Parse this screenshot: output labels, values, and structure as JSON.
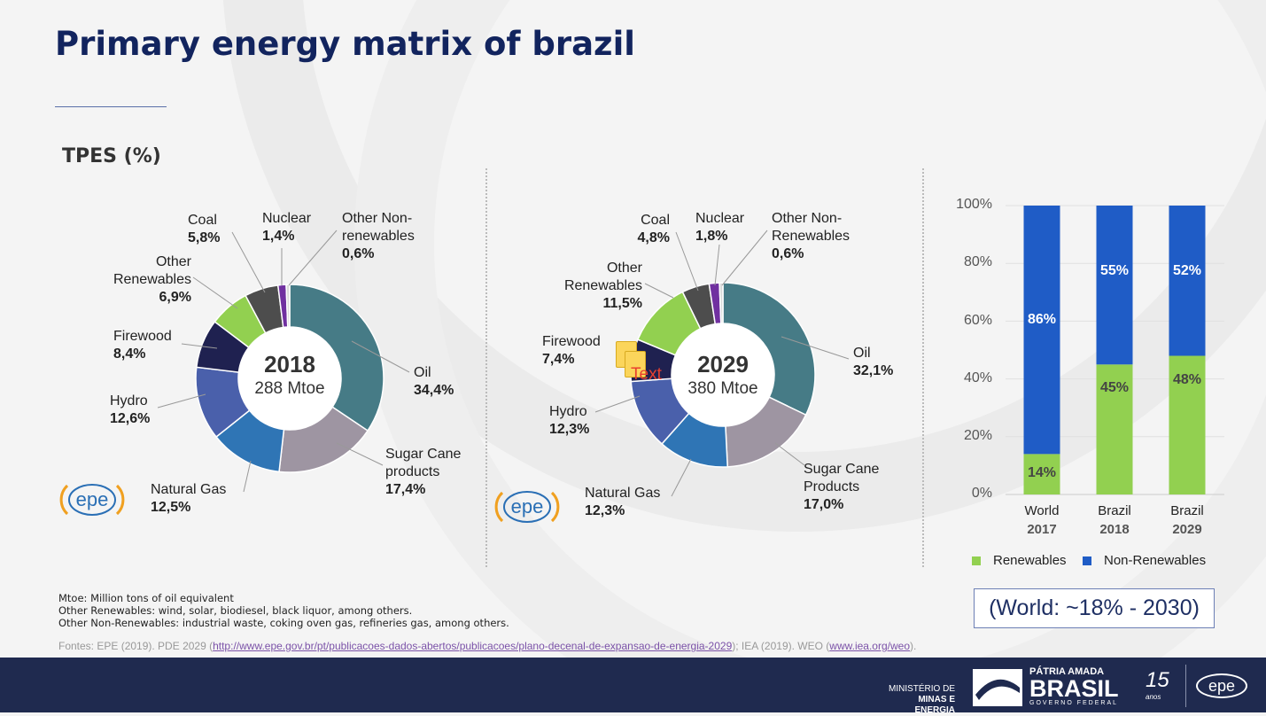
{
  "title": "Primary energy matrix of brazil",
  "subtitle": "TPES (%)",
  "colors": {
    "oil": "#467b86",
    "sugar_cane": "#9e95a2",
    "natural_gas": "#2f75b5",
    "hydro": "#4a60ab",
    "firewood": "#1f2150",
    "other_renewables": "#92d050",
    "coal": "#4d4d4d",
    "nuclear": "#7030a0",
    "other_non_renewables": "#d9d9d9",
    "renewables": "#92d050",
    "non_renewables": "#1f5cc6"
  },
  "donuts": [
    {
      "year": "2018",
      "total": "288 Mtoe",
      "slices": [
        {
          "key": "oil",
          "name": "Oil",
          "value_label": "34,4%",
          "value": 34.4
        },
        {
          "key": "sugar_cane",
          "name": "Sugar Cane products",
          "value_label": "17,4%",
          "value": 17.4
        },
        {
          "key": "natural_gas",
          "name": "Natural Gas",
          "value_label": "12,5%",
          "value": 12.5
        },
        {
          "key": "hydro",
          "name": "Hydro",
          "value_label": "12,6%",
          "value": 12.6
        },
        {
          "key": "firewood",
          "name": "Firewood",
          "value_label": "8,4%",
          "value": 8.4
        },
        {
          "key": "other_renewables",
          "name": "Other Renewables",
          "value_label": "6,9%",
          "value": 6.9
        },
        {
          "key": "coal",
          "name": "Coal",
          "value_label": "5,8%",
          "value": 5.8
        },
        {
          "key": "nuclear",
          "name": "Nuclear",
          "value_label": "1,4%",
          "value": 1.4
        },
        {
          "key": "other_non_renewables",
          "name": "Other Non-renewables",
          "value_label": "0,6%",
          "value": 0.6
        }
      ]
    },
    {
      "year": "2029",
      "total": "380 Mtoe",
      "slices": [
        {
          "key": "oil",
          "name": "Oil",
          "value_label": "32,1%",
          "value": 32.1
        },
        {
          "key": "sugar_cane",
          "name": "Sugar Cane Products",
          "value_label": "17,0%",
          "value": 17.0
        },
        {
          "key": "natural_gas",
          "name": "Natural Gas",
          "value_label": "12,3%",
          "value": 12.3
        },
        {
          "key": "hydro",
          "name": "Hydro",
          "value_label": "12,3%",
          "value": 12.3
        },
        {
          "key": "firewood",
          "name": "Firewood",
          "value_label": "7,4%",
          "value": 7.4
        },
        {
          "key": "other_renewables",
          "name": "Other Renewables",
          "value_label": "11,5%",
          "value": 11.5
        },
        {
          "key": "coal",
          "name": "Coal",
          "value_label": "4,8%",
          "value": 4.8
        },
        {
          "key": "nuclear",
          "name": "Nuclear",
          "value_label": "1,8%",
          "value": 1.8
        },
        {
          "key": "other_non_renewables",
          "name": "Other Non-Renewables",
          "value_label": "0,6%",
          "value": 0.6
        }
      ]
    }
  ],
  "sticky_note_text": "Text",
  "logo_text": "epe",
  "chart_data": {
    "type": "bar",
    "stacked": true,
    "categories": [
      [
        "World",
        "2017"
      ],
      [
        "Brazil",
        "2018"
      ],
      [
        "Brazil",
        "2029"
      ]
    ],
    "series": [
      {
        "name": "Renewables",
        "values": [
          14,
          45,
          48
        ],
        "labels": [
          "14%",
          "45%",
          "48%"
        ]
      },
      {
        "name": "Non-Renewables",
        "values": [
          86,
          55,
          52
        ],
        "labels": [
          "86%",
          "55%",
          "52%"
        ]
      }
    ],
    "ylim": [
      0,
      100
    ],
    "yticks": [
      "0%",
      "20%",
      "40%",
      "60%",
      "80%",
      "100%"
    ],
    "grid": true,
    "legend": "bottom"
  },
  "world_note": "(World: ~18% - 2030)",
  "notes": [
    "Mtoe: Million tons of oil equivalent",
    "Other Renewables: wind, solar, biodiesel, black liquor, among others.",
    "Other Non-Renewables: industrial waste, coking oven gas, refineries gas, among others."
  ],
  "sources": {
    "prefix": "Fontes: EPE (2019). PDE 2029 (",
    "link1": "http://www.epe.gov.br/pt/publicacoes-dados-abertos/publicacoes/plano-decenal-de-expansao-de-energia-2029",
    "middle": "); IEA (2019). WEO (",
    "link2": "www.iea.org/weo",
    "suffix": ")."
  },
  "footer": {
    "ministry_line1": "MINISTÉRIO DE",
    "ministry_line2": "MINAS E ENERGIA",
    "brasil_top": "PÁTRIA AMADA",
    "brasil_main": "BRASIL",
    "brasil_bottom": "GOVERNO FEDERAL",
    "anniversary": "15",
    "anniversary_sub": "anos",
    "epe": "epe"
  }
}
